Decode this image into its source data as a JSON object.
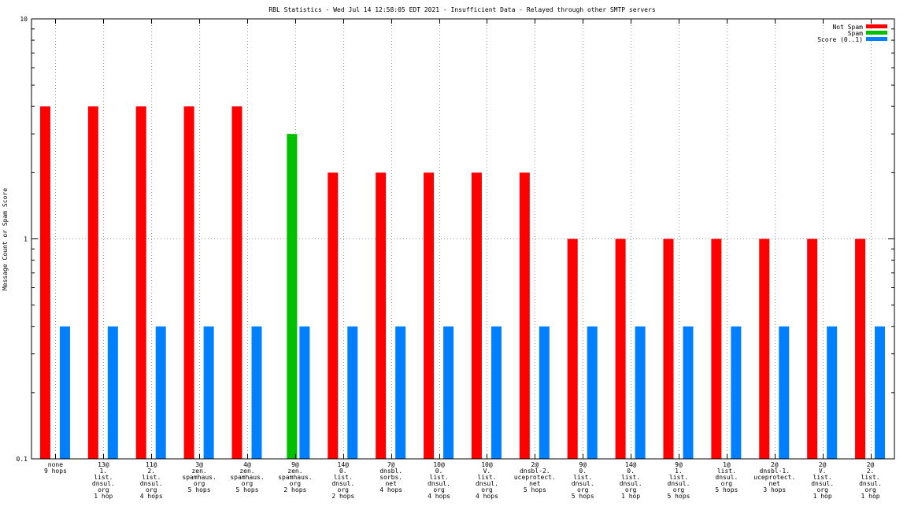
{
  "chart_data": {
    "type": "bar",
    "title": "RBL Statistics - Wed Jul 14 12:58:05 EDT 2021 - Insufficient Data - Relayed through other SMTP servers",
    "ylabel": "Message Count or Spam Score",
    "xlabel": "",
    "yscale": "log",
    "ylim": [
      0.1,
      10
    ],
    "yticks": [
      {
        "value": 10,
        "label": "10"
      },
      {
        "value": 1,
        "label": "1"
      },
      {
        "value": 0.1,
        "label": "0.1"
      }
    ],
    "grid": true,
    "legend_position": "top-right",
    "categories": [
      [
        "none",
        "9 hops"
      ],
      [
        "13@",
        "1.",
        "list.",
        "dnsul.",
        "org",
        "1 hop"
      ],
      [
        "11@",
        "2.",
        "list.",
        "dnsul.",
        "org",
        "4 hops"
      ],
      [
        "3@",
        "zen.",
        "spamhaus.",
        "org",
        "5 hops"
      ],
      [
        "4@",
        "zen.",
        "spamhaus.",
        "org",
        "5 hops"
      ],
      [
        "9@",
        "zen.",
        "spamhaus.",
        "org",
        "2 hops"
      ],
      [
        "14@",
        "0.",
        "list.",
        "dnsul.",
        "org",
        "2 hops"
      ],
      [
        "7@",
        "dnsbl.",
        "sorbs.",
        "net",
        "4 hops"
      ],
      [
        "10@",
        "0.",
        "list.",
        "dnsul.",
        "org",
        "4 hops"
      ],
      [
        "10@",
        "V.",
        "list.",
        "dnsul.",
        "org",
        "4 hops"
      ],
      [
        "2@",
        "dnsbl-2.",
        "uceprotect.",
        "net",
        "5 hops"
      ],
      [
        "9@",
        "0.",
        "list.",
        "dnsul.",
        "org",
        "5 hops"
      ],
      [
        "14@",
        "0.",
        "list.",
        "dnsul.",
        "org",
        "1 hop"
      ],
      [
        "9@",
        "1.",
        "list.",
        "dnsul.",
        "org",
        "5 hops"
      ],
      [
        "1@",
        "list.",
        "dnsul.",
        "org",
        "5 hops"
      ],
      [
        "2@",
        "dnsbl-1.",
        "uceprotect.",
        "net",
        "3 hops"
      ],
      [
        "2@",
        "V.",
        "list.",
        "dnsul.",
        "org",
        "1 hop"
      ],
      [
        "2@",
        "2.",
        "list.",
        "dnsul.",
        "org",
        "1 hop"
      ]
    ],
    "series": [
      {
        "name": "Not Spam",
        "color": "#ff0000",
        "values": [
          4,
          4,
          4,
          4,
          4,
          null,
          2,
          2,
          2,
          2,
          2,
          1,
          1,
          1,
          1,
          1,
          1,
          1
        ]
      },
      {
        "name": "Spam",
        "color": "#00c000",
        "values": [
          null,
          null,
          null,
          null,
          null,
          3,
          null,
          null,
          null,
          null,
          null,
          null,
          null,
          null,
          null,
          null,
          null,
          null
        ]
      },
      {
        "name": "Score (0..1)",
        "color": "#0080ff",
        "values": [
          0.4,
          0.4,
          0.4,
          0.4,
          0.4,
          0.4,
          0.4,
          0.4,
          0.4,
          0.4,
          0.4,
          0.4,
          0.4,
          0.4,
          0.4,
          0.4,
          0.4,
          0.4
        ]
      }
    ]
  }
}
